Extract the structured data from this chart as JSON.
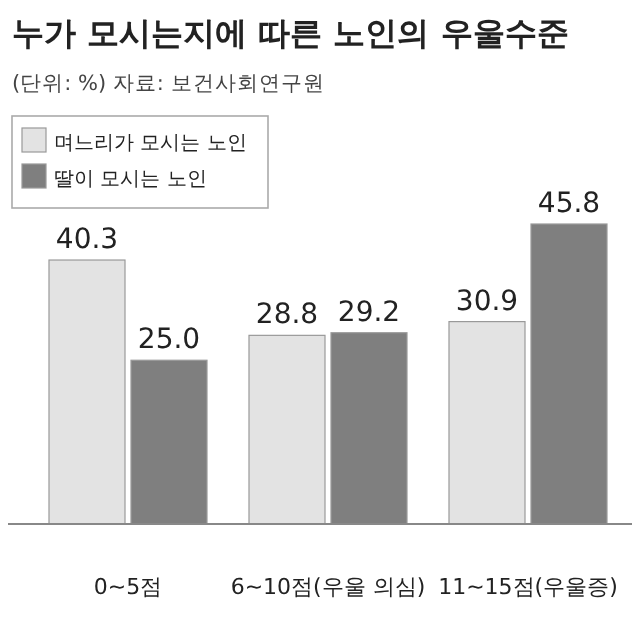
{
  "chart_data": {
    "type": "bar",
    "title": "누가 모시는지에 따른 노인의 우울수준",
    "subtitle": "(단위: %) 자료: 보건사회연구원",
    "categories": [
      "0~5점",
      "6~10점(우울 의심)",
      "11~15점(우울증)"
    ],
    "series": [
      {
        "name": "며느리가 모시는 노인",
        "color": "#e3e3e3",
        "values": [
          40.3,
          28.8,
          30.9
        ],
        "value_labels": [
          "40.3",
          "28.8",
          "30.9"
        ]
      },
      {
        "name": "딸이 모시는 노인",
        "color": "#7f7f7f",
        "values": [
          25.0,
          29.2,
          45.8
        ],
        "value_labels": [
          "25.0",
          "29.2",
          "45.8"
        ]
      }
    ],
    "legend": "top left"
  }
}
